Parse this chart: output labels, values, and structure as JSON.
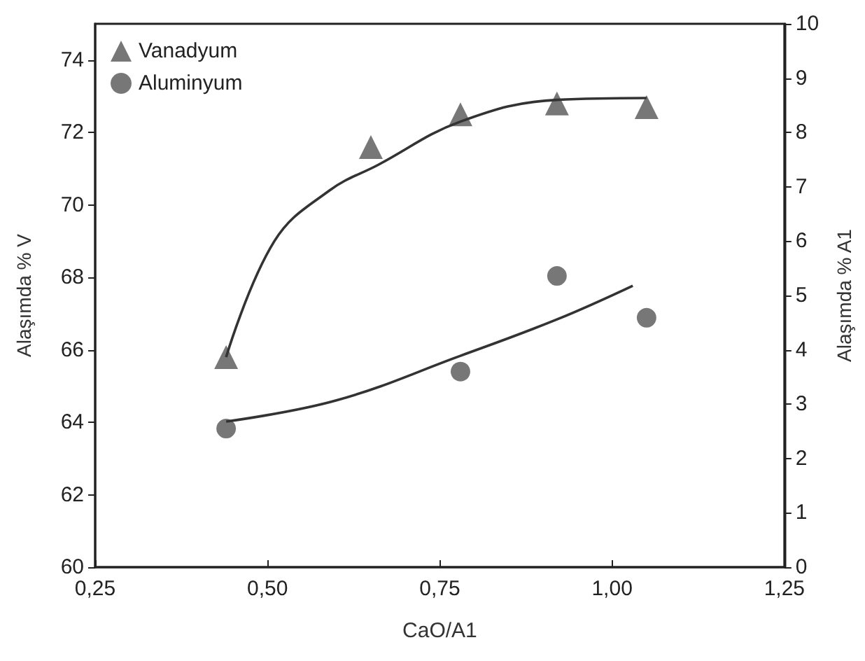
{
  "chart_data": {
    "type": "scatter",
    "xlabel": "CaO/A1",
    "ylabel": "Alaşımda % V",
    "y2label": "Alaşımda % A1",
    "xlim": [
      0.25,
      1.25
    ],
    "xticks": [
      {
        "value": 0.25,
        "label": "0,25"
      },
      {
        "value": 0.5,
        "label": "0,50"
      },
      {
        "value": 0.75,
        "label": "0,75"
      },
      {
        "value": 1,
        "label": "1,00"
      },
      {
        "value": 1.25,
        "label": "1,25"
      }
    ],
    "ylim": [
      60,
      75
    ],
    "yticks": [
      60,
      62,
      64,
      66,
      68,
      70,
      72,
      74
    ],
    "y2lim": [
      0,
      10
    ],
    "y2ticks": [
      0,
      1,
      2,
      3,
      4,
      5,
      6,
      7,
      8,
      9,
      10
    ],
    "grid": false,
    "legend": "top left",
    "series": [
      {
        "name": "Vanadyum",
        "marker": "triangle",
        "color": "#555555",
        "x": [
          0.44,
          0.65,
          0.78,
          0.92,
          1.05
        ],
        "values": [
          65.8,
          71.6,
          72.5,
          72.8,
          72.7
        ]
      },
      {
        "name": "Aluminyum",
        "marker": "circle",
        "color": "#555555",
        "axis": "y2",
        "x": [
          0.44,
          0.78,
          0.92,
          1.05
        ],
        "values": [
          2.55,
          3.6,
          5.36,
          4.59
        ]
      },
      {
        "type": "line",
        "marker": "none",
        "color": "#333333",
        "x": [
          0.44,
          0.51,
          0.59,
          0.66,
          0.78,
          0.92,
          1.05
        ],
        "values": [
          65.8,
          69.0,
          70.4,
          71.1,
          72.3,
          72.9,
          72.95
        ]
      },
      {
        "type": "line",
        "marker": "none",
        "color": "#333333",
        "axis": "y2",
        "x": [
          0.44,
          0.6,
          0.78,
          0.92,
          1.03
        ],
        "values": [
          2.68,
          3.07,
          3.89,
          4.56,
          5.18
        ]
      }
    ]
  }
}
